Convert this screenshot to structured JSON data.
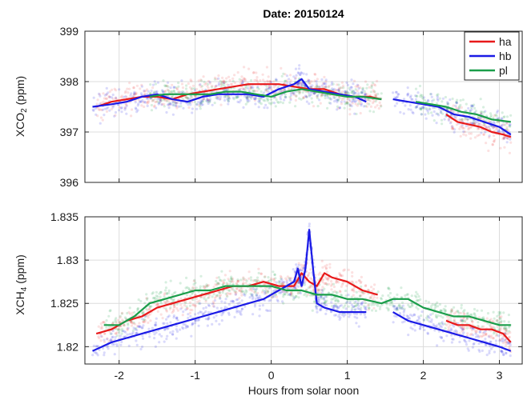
{
  "chart_data": [
    {
      "type": "line",
      "title": "Date: 20150124",
      "xlabel": "",
      "ylabel": "XCO2 (ppm)",
      "ylabel_main": "XCO",
      "ylabel_sub": "2",
      "ylabel_unit": " (ppm)",
      "xlim": [
        -2.45,
        3.3
      ],
      "ylim": [
        396,
        399
      ],
      "x_ticks": [
        -2,
        -1,
        0,
        1,
        2,
        3
      ],
      "y_ticks": [
        396,
        397,
        398,
        399
      ],
      "y_tick_labels": [
        "396",
        "397",
        "398",
        "399"
      ],
      "grid": true,
      "legend": {
        "placement": "top-right",
        "entries": [
          "ha",
          "hb",
          "pl"
        ]
      },
      "series": [
        {
          "name": "ha",
          "color": "#e8191a",
          "x": [
            -2.3,
            -2.1,
            -1.9,
            -1.7,
            -1.5,
            -1.3,
            -1.1,
            -0.9,
            -0.7,
            -0.5,
            -0.3,
            -0.1,
            0.1,
            0.3,
            0.5,
            0.7,
            0.9,
            1.1,
            1.3,
            1.45,
            2.3,
            2.45,
            2.6,
            2.75,
            2.9,
            3.05,
            3.15
          ],
          "y": [
            397.5,
            397.6,
            397.65,
            397.7,
            397.7,
            397.65,
            397.75,
            397.8,
            397.85,
            397.9,
            397.95,
            397.95,
            397.95,
            397.9,
            397.85,
            397.85,
            397.75,
            397.7,
            397.7,
            397.65,
            397.35,
            397.2,
            397.15,
            397.1,
            397.0,
            396.95,
            396.9
          ]
        },
        {
          "name": "hb",
          "color": "#1a1ae6",
          "x": [
            -2.35,
            -2.1,
            -1.9,
            -1.7,
            -1.5,
            -1.3,
            -1.1,
            -0.9,
            -0.7,
            -0.5,
            -0.3,
            -0.1,
            0.1,
            0.3,
            0.4,
            0.5,
            0.7,
            0.9,
            1.1,
            1.25,
            1.6,
            1.8,
            2.0,
            2.2,
            2.4,
            2.6,
            2.8,
            3.0,
            3.15
          ],
          "y": [
            397.5,
            397.55,
            397.6,
            397.7,
            397.75,
            397.65,
            397.6,
            397.7,
            397.75,
            397.75,
            397.75,
            397.7,
            397.85,
            397.95,
            398.05,
            397.85,
            397.8,
            397.75,
            397.7,
            397.6,
            397.65,
            397.6,
            397.55,
            397.5,
            397.35,
            397.3,
            397.2,
            397.1,
            396.95
          ]
        },
        {
          "name": "pl",
          "color": "#1a9e4a",
          "x": [
            -1.6,
            -1.4,
            -1.2,
            -1.0,
            -0.8,
            -0.6,
            -0.4,
            -0.2,
            0.0,
            0.2,
            0.4,
            0.6,
            0.8,
            1.0,
            1.2,
            1.45,
            1.9,
            2.1,
            2.3,
            2.5,
            2.7,
            2.9,
            3.15
          ],
          "y": [
            397.7,
            397.75,
            397.75,
            397.75,
            397.75,
            397.8,
            397.8,
            397.75,
            397.7,
            397.8,
            397.85,
            397.8,
            397.75,
            397.7,
            397.7,
            397.65,
            397.6,
            397.55,
            397.5,
            397.4,
            397.35,
            397.25,
            397.2
          ]
        }
      ]
    },
    {
      "type": "line",
      "title": "",
      "xlabel": "Hours from solar noon",
      "ylabel": "XCH4 (ppm)",
      "ylabel_main": "XCH",
      "ylabel_sub": "4",
      "ylabel_unit": " (ppm)",
      "xlim": [
        -2.45,
        3.3
      ],
      "ylim": [
        1.818,
        1.835
      ],
      "x_ticks": [
        -2,
        -1,
        0,
        1,
        2,
        3
      ],
      "x_tick_labels": [
        "-2",
        "-1",
        "0",
        "1",
        "2",
        "3"
      ],
      "y_ticks": [
        1.82,
        1.825,
        1.83,
        1.835
      ],
      "y_tick_labels": [
        "1.82",
        "1.825",
        "1.83",
        "1.835"
      ],
      "grid": true,
      "series": [
        {
          "name": "ha",
          "color": "#e8191a",
          "x": [
            -2.3,
            -2.1,
            -1.9,
            -1.7,
            -1.5,
            -1.3,
            -1.1,
            -0.9,
            -0.7,
            -0.5,
            -0.3,
            -0.1,
            0.1,
            0.3,
            0.4,
            0.5,
            0.6,
            0.7,
            0.8,
            1.0,
            1.2,
            1.4,
            2.3,
            2.45,
            2.6,
            2.75,
            2.9,
            3.05,
            3.15
          ],
          "y": [
            1.8215,
            1.822,
            1.823,
            1.8235,
            1.8245,
            1.825,
            1.8255,
            1.826,
            1.8265,
            1.827,
            1.827,
            1.8275,
            1.827,
            1.827,
            1.8285,
            1.8275,
            1.827,
            1.8285,
            1.828,
            1.8275,
            1.8265,
            1.826,
            1.823,
            1.8225,
            1.8225,
            1.822,
            1.822,
            1.8215,
            1.8205
          ]
        },
        {
          "name": "hb",
          "color": "#1a1ae6",
          "x": [
            -2.35,
            -2.1,
            -1.9,
            -1.7,
            -1.5,
            -1.3,
            -1.1,
            -0.9,
            -0.7,
            -0.5,
            -0.3,
            -0.1,
            0.1,
            0.3,
            0.35,
            0.4,
            0.45,
            0.5,
            0.55,
            0.6,
            0.7,
            0.9,
            1.1,
            1.25,
            1.6,
            1.8,
            2.0,
            2.2,
            2.4,
            2.6,
            2.8,
            3.0,
            3.15
          ],
          "y": [
            1.8195,
            1.8205,
            1.821,
            1.8215,
            1.822,
            1.8225,
            1.823,
            1.8235,
            1.824,
            1.8245,
            1.825,
            1.8255,
            1.8265,
            1.8275,
            1.829,
            1.827,
            1.829,
            1.8335,
            1.829,
            1.825,
            1.8245,
            1.824,
            1.824,
            1.824,
            1.824,
            1.823,
            1.8225,
            1.822,
            1.8215,
            1.821,
            1.8205,
            1.82,
            1.8195
          ]
        },
        {
          "name": "pl",
          "color": "#1a9e4a",
          "x": [
            -2.2,
            -2.0,
            -1.8,
            -1.6,
            -1.4,
            -1.2,
            -1.0,
            -0.8,
            -0.6,
            -0.4,
            -0.2,
            0.0,
            0.2,
            0.4,
            0.6,
            0.8,
            1.0,
            1.2,
            1.45,
            1.6,
            1.8,
            2.0,
            2.2,
            2.4,
            2.6,
            2.8,
            3.0,
            3.15
          ],
          "y": [
            1.8225,
            1.8225,
            1.8235,
            1.825,
            1.8255,
            1.826,
            1.8265,
            1.8265,
            1.827,
            1.827,
            1.827,
            1.827,
            1.8265,
            1.8265,
            1.826,
            1.826,
            1.8255,
            1.8255,
            1.825,
            1.8255,
            1.8255,
            1.8245,
            1.824,
            1.8235,
            1.8235,
            1.823,
            1.8225,
            1.8225
          ]
        }
      ]
    }
  ]
}
